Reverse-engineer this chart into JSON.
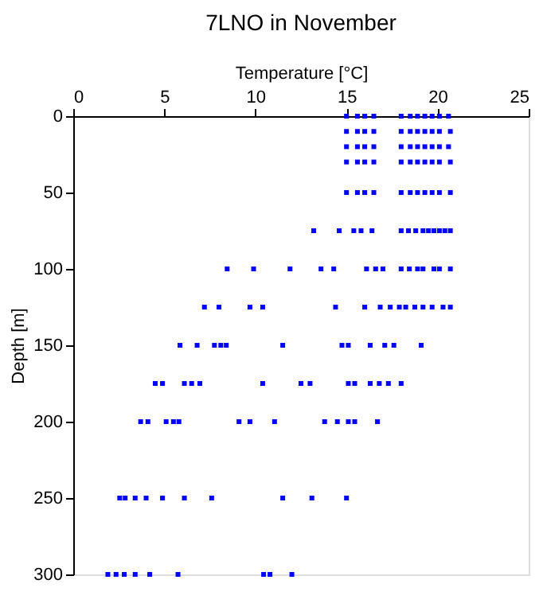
{
  "chart_data": {
    "type": "scatter",
    "title": "7LNO in November",
    "xlabel": "Temperature [°C]",
    "ylabel": "Depth [m]",
    "xlim": [
      0,
      25
    ],
    "xticks": [
      0,
      5,
      10,
      15,
      20,
      25
    ],
    "ylim": [
      300,
      0
    ],
    "yticks": [
      0,
      50,
      100,
      150,
      200,
      250,
      300
    ],
    "grid": false,
    "legend": false,
    "marker": "square",
    "series": [
      {
        "color": "#0000ff",
        "x": [
          15.0,
          15.6,
          16.0,
          16.5,
          18.0,
          18.5,
          18.9,
          19.3,
          19.7,
          20.1,
          20.6
        ],
        "values": [
          0,
          0,
          0,
          0,
          0,
          0,
          0,
          0,
          0,
          0,
          0
        ]
      },
      {
        "color": "#0000ff",
        "x": [
          15.0,
          15.6,
          16.0,
          16.5,
          18.0,
          18.5,
          18.9,
          19.3,
          19.7,
          20.1,
          20.7
        ],
        "values": [
          10,
          10,
          10,
          10,
          10,
          10,
          10,
          10,
          10,
          10,
          10
        ]
      },
      {
        "color": "#0000ff",
        "x": [
          15.0,
          15.6,
          16.0,
          16.5,
          18.0,
          18.5,
          18.9,
          19.3,
          19.7,
          20.1,
          20.6
        ],
        "values": [
          20,
          20,
          20,
          20,
          20,
          20,
          20,
          20,
          20,
          20,
          20
        ]
      },
      {
        "color": "#0000ff",
        "x": [
          15.0,
          15.6,
          16.0,
          16.5,
          18.0,
          18.5,
          18.9,
          19.3,
          19.7,
          20.1,
          20.7
        ],
        "values": [
          30,
          30,
          30,
          30,
          30,
          30,
          30,
          30,
          30,
          30,
          30
        ]
      },
      {
        "color": "#0000ff",
        "x": [
          15.0,
          15.6,
          16.0,
          16.5,
          18.0,
          18.5,
          18.9,
          19.3,
          19.7,
          20.1,
          20.7
        ],
        "values": [
          50,
          50,
          50,
          50,
          50,
          50,
          50,
          50,
          50,
          50,
          50
        ]
      },
      {
        "color": "#0000ff",
        "x": [
          13.2,
          14.6,
          15.4,
          15.8,
          16.4,
          18.0,
          18.4,
          18.8,
          19.2,
          19.5,
          19.8,
          20.1,
          20.4,
          20.7
        ],
        "values": [
          75,
          75,
          75,
          75,
          75,
          75,
          75,
          75,
          75,
          75,
          75,
          75,
          75,
          75
        ]
      },
      {
        "color": "#0000ff",
        "x": [
          8.45,
          9.9,
          11.9,
          13.6,
          14.3,
          16.1,
          16.6,
          17.0,
          18.0,
          18.45,
          18.9,
          19.2,
          19.8,
          20.1,
          20.7
        ],
        "values": [
          100,
          100,
          100,
          100,
          100,
          100,
          100,
          100,
          100,
          100,
          100,
          100,
          100,
          100,
          100
        ]
      },
      {
        "color": "#0000ff",
        "x": [
          7.2,
          8.0,
          9.7,
          10.4,
          14.4,
          16.0,
          16.85,
          17.4,
          17.9,
          18.25,
          18.75,
          19.2,
          19.7,
          20.3,
          20.7
        ],
        "values": [
          125,
          125,
          125,
          125,
          125,
          125,
          125,
          125,
          125,
          125,
          125,
          125,
          125,
          125,
          125
        ]
      },
      {
        "color": "#0000ff",
        "x": [
          5.86,
          6.8,
          7.75,
          8.1,
          8.4,
          11.5,
          14.75,
          15.1,
          16.3,
          17.1,
          17.6,
          19.1
        ],
        "values": [
          150,
          150,
          150,
          150,
          150,
          150,
          150,
          150,
          150,
          150,
          150,
          150
        ]
      },
      {
        "color": "#0000ff",
        "x": [
          4.5,
          4.9,
          6.1,
          6.5,
          6.95,
          10.4,
          12.5,
          13.0,
          15.1,
          15.45,
          16.3,
          16.8,
          17.3,
          18.0
        ],
        "values": [
          175,
          175,
          175,
          175,
          175,
          175,
          175,
          175,
          175,
          175,
          175,
          175,
          175,
          175
        ]
      },
      {
        "color": "#0000ff",
        "x": [
          3.7,
          4.1,
          5.1,
          5.5,
          5.8,
          9.1,
          9.7,
          11.05,
          13.8,
          14.5,
          15.1,
          15.45,
          16.7
        ],
        "values": [
          200,
          200,
          200,
          200,
          200,
          200,
          200,
          200,
          200,
          200,
          200,
          200,
          200
        ]
      },
      {
        "color": "#0000ff",
        "x": [
          2.55,
          2.85,
          3.4,
          4.0,
          4.9,
          6.1,
          7.6,
          11.5,
          13.1,
          15.0
        ],
        "values": [
          250,
          250,
          250,
          250,
          250,
          250,
          250,
          250,
          250,
          250
        ]
      },
      {
        "color": "#0000ff",
        "x": [
          1.9,
          2.35,
          2.8,
          3.4,
          4.2,
          5.75,
          10.45,
          10.8,
          12.0
        ],
        "values": [
          300,
          300,
          300,
          300,
          300,
          300,
          300,
          300,
          300
        ]
      }
    ]
  }
}
